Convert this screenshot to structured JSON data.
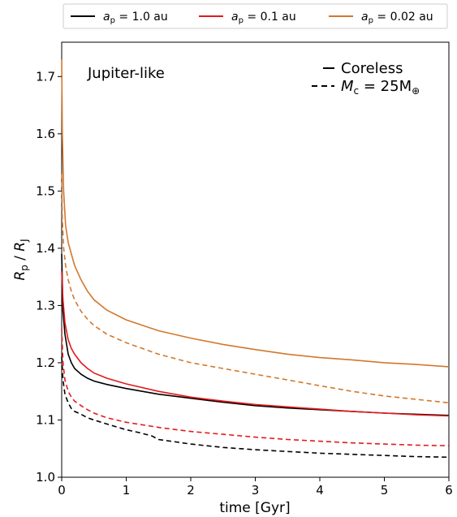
{
  "chart_data": {
    "type": "line",
    "title": "",
    "annotation": "Jupiter-like",
    "xlabel": "time [Gyr]",
    "ylabel_main": "R",
    "ylabel_sub1": "p",
    "ylabel_sep": " / ",
    "ylabel_main2": "R",
    "ylabel_sub2": "J",
    "xlim": [
      0,
      6
    ],
    "ylim": [
      1.0,
      1.76
    ],
    "xticks": [
      "0",
      "1",
      "2",
      "3",
      "4",
      "5",
      "6"
    ],
    "yticks": [
      "1.0",
      "1.1",
      "1.2",
      "1.3",
      "1.4",
      "1.5",
      "1.6",
      "1.7"
    ],
    "grid": false,
    "legend_placement": "top (above plot)",
    "legend": [
      {
        "label_prefix": "a",
        "label_sub": "p",
        "label_value": " = 1.0 au",
        "color": "#000000"
      },
      {
        "label_prefix": "a",
        "label_sub": "p",
        "label_value": " = 0.1 au",
        "color": "#e31a1c"
      },
      {
        "label_prefix": "a",
        "label_sub": "p",
        "label_value": " = 0.02 au",
        "color": "#d2782d"
      }
    ],
    "style_legend": {
      "solid_label": "Coreless",
      "dashed_prefix": "M",
      "dashed_sub": "c",
      "dashed_value": " = 25M",
      "dashed_sub2": "⊕"
    },
    "series": [
      {
        "color": "#000000",
        "style": "solid",
        "x": [
          0.0,
          0.02,
          0.05,
          0.1,
          0.15,
          0.2,
          0.3,
          0.4,
          0.5,
          0.7,
          1.0,
          1.5,
          2.0,
          2.5,
          3.0,
          3.5,
          4.0,
          4.5,
          5.0,
          5.5,
          6.0
        ],
        "y": [
          1.39,
          1.29,
          1.25,
          1.215,
          1.2,
          1.19,
          1.18,
          1.173,
          1.168,
          1.162,
          1.155,
          1.145,
          1.138,
          1.131,
          1.125,
          1.121,
          1.118,
          1.115,
          1.112,
          1.11,
          1.108
        ]
      },
      {
        "color": "#e31a1c",
        "style": "solid",
        "x": [
          0.0,
          0.02,
          0.05,
          0.1,
          0.15,
          0.2,
          0.3,
          0.4,
          0.5,
          0.7,
          1.0,
          1.5,
          2.0,
          2.5,
          3.0,
          3.5,
          4.0,
          4.5,
          5.0,
          5.5,
          6.0
        ],
        "y": [
          1.36,
          1.31,
          1.27,
          1.24,
          1.225,
          1.215,
          1.2,
          1.19,
          1.182,
          1.173,
          1.163,
          1.15,
          1.14,
          1.133,
          1.127,
          1.123,
          1.119,
          1.115,
          1.112,
          1.109,
          1.107
        ]
      },
      {
        "color": "#d2782d",
        "style": "solid",
        "x": [
          0.0,
          0.01,
          0.03,
          0.06,
          0.1,
          0.15,
          0.2,
          0.3,
          0.4,
          0.5,
          0.7,
          1.0,
          1.5,
          2.0,
          2.5,
          3.0,
          3.5,
          4.0,
          4.5,
          5.0,
          5.5,
          6.0
        ],
        "y": [
          1.73,
          1.6,
          1.5,
          1.44,
          1.41,
          1.39,
          1.37,
          1.345,
          1.325,
          1.31,
          1.292,
          1.275,
          1.256,
          1.243,
          1.232,
          1.223,
          1.215,
          1.209,
          1.205,
          1.2,
          1.197,
          1.193
        ]
      },
      {
        "color": "#000000",
        "style": "dashed",
        "x": [
          0.0,
          0.02,
          0.05,
          0.1,
          0.15,
          0.2,
          0.3,
          0.4,
          0.5,
          0.7,
          1.0,
          1.2,
          1.4,
          1.5,
          2.0,
          2.5,
          3.0,
          3.5,
          4.0,
          4.5,
          5.0,
          5.5,
          6.0
        ],
        "y": [
          1.21,
          1.17,
          1.145,
          1.13,
          1.12,
          1.115,
          1.11,
          1.104,
          1.1,
          1.093,
          1.083,
          1.078,
          1.072,
          1.066,
          1.058,
          1.052,
          1.048,
          1.045,
          1.042,
          1.04,
          1.038,
          1.036,
          1.035
        ]
      },
      {
        "color": "#e31a1c",
        "style": "dashed",
        "x": [
          0.0,
          0.02,
          0.05,
          0.1,
          0.15,
          0.2,
          0.3,
          0.4,
          0.5,
          0.7,
          1.0,
          1.5,
          2.0,
          2.5,
          3.0,
          3.5,
          4.0,
          4.5,
          5.0,
          5.5,
          6.0
        ],
        "y": [
          1.26,
          1.2,
          1.17,
          1.15,
          1.14,
          1.133,
          1.125,
          1.118,
          1.112,
          1.104,
          1.096,
          1.087,
          1.08,
          1.075,
          1.07,
          1.066,
          1.063,
          1.06,
          1.058,
          1.056,
          1.055
        ]
      },
      {
        "color": "#d2782d",
        "style": "dashed",
        "x": [
          0.0,
          0.01,
          0.03,
          0.06,
          0.1,
          0.15,
          0.2,
          0.3,
          0.4,
          0.5,
          0.7,
          1.0,
          1.5,
          2.0,
          2.5,
          3.0,
          3.5,
          4.0,
          4.5,
          5.0,
          5.5,
          6.0
        ],
        "y": [
          1.53,
          1.45,
          1.4,
          1.37,
          1.345,
          1.325,
          1.31,
          1.29,
          1.276,
          1.265,
          1.25,
          1.235,
          1.215,
          1.2,
          1.19,
          1.18,
          1.17,
          1.16,
          1.15,
          1.142,
          1.136,
          1.13
        ]
      }
    ]
  }
}
